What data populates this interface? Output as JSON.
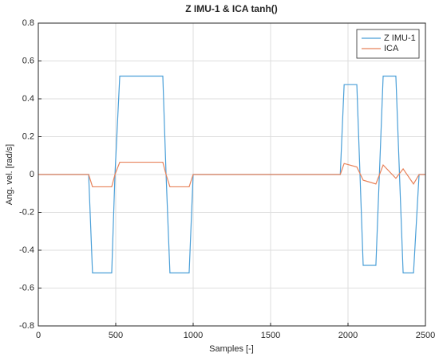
{
  "chart_data": {
    "type": "line",
    "title": "Z IMU-1 & ICA tanh()",
    "x_label": "Samples [-]",
    "y_label": "Ang. vel. [rad/s]",
    "x": [
      0,
      325,
      350,
      474,
      495,
      526,
      804,
      825,
      850,
      974,
      1000,
      1950,
      1975,
      2057,
      2098,
      2180,
      2227,
      2309,
      2356,
      2423,
      2459,
      2500
    ],
    "series": [
      {
        "name": "Z IMU-1",
        "color": "#4a9fd8",
        "values": [
          0,
          0,
          -0.52,
          -0.52,
          0,
          0.52,
          0.52,
          0,
          -0.52,
          -0.52,
          0,
          0,
          0.475,
          0.475,
          -0.48,
          -0.48,
          0.52,
          0.52,
          -0.52,
          -0.52,
          0,
          0
        ]
      },
      {
        "name": "ICA",
        "color": "#e8825a",
        "values": [
          0,
          0,
          -0.065,
          -0.065,
          0,
          0.065,
          0.065,
          0,
          -0.065,
          -0.065,
          0,
          0,
          0.058,
          0.04,
          -0.03,
          -0.05,
          0.05,
          -0.02,
          0.03,
          -0.05,
          0,
          0
        ]
      }
    ],
    "xlim": [
      0,
      2500
    ],
    "xticks": [
      0,
      500,
      1000,
      1500,
      2000,
      2500
    ],
    "ylim": [
      -0.8,
      0.8
    ],
    "yticks": [
      -0.8,
      -0.6,
      -0.4,
      -0.2,
      0,
      0.2,
      0.4,
      0.6,
      0.8
    ],
    "grid": true,
    "legend": "northeast"
  }
}
